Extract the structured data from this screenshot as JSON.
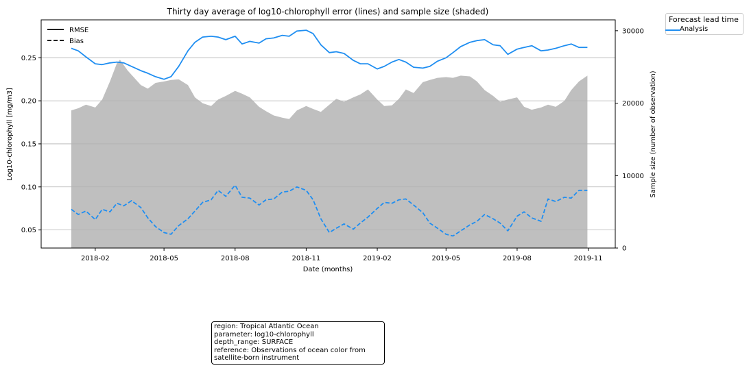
{
  "chart_data": {
    "type": "line",
    "title": "Thirty day average of log10-chlorophyll error (lines) and sample size (shaded)",
    "xlabel": "Date (months)",
    "ylabel": "Log10-chlorophyll [mg/m3]",
    "ylabel_right": "Sample size (number of observation)",
    "x_ticks": [
      "2018-02",
      "2018-05",
      "2018-08",
      "2018-11",
      "2019-02",
      "2019-05",
      "2019-08",
      "2019-11"
    ],
    "y_ticks": [
      "0.05",
      "0.10",
      "0.15",
      "0.20",
      "0.25"
    ],
    "y_right_ticks": [
      "0",
      "10000",
      "20000",
      "30000"
    ],
    "ylim": [
      0.029,
      0.294
    ],
    "ylim_right": [
      0,
      31500
    ],
    "xlim": [
      "2017-11-23",
      "2019-12-06"
    ],
    "grid": "horizontal",
    "legend_styles": {
      "entries": [
        {
          "label": "RMSE",
          "style": "solid"
        },
        {
          "label": "Bias",
          "style": "dashed"
        }
      ],
      "placement": "top-left"
    },
    "legend_forecast": {
      "title": "Forecast lead time",
      "entries": [
        {
          "label": "Analysis"
        }
      ],
      "placement": "outside top-right"
    },
    "series": [
      {
        "name": "RMSE",
        "color": "#1f8ef1",
        "style": "solid",
        "x": [
          "2018-01-01",
          "2018-01-10",
          "2018-01-20",
          "2018-02-01",
          "2018-02-10",
          "2018-02-20",
          "2018-03-01",
          "2018-03-10",
          "2018-03-20",
          "2018-04-01",
          "2018-04-10",
          "2018-04-20",
          "2018-05-01",
          "2018-05-10",
          "2018-05-20",
          "2018-06-01",
          "2018-06-10",
          "2018-06-20",
          "2018-07-01",
          "2018-07-10",
          "2018-07-20",
          "2018-08-01",
          "2018-08-10",
          "2018-08-20",
          "2018-09-01",
          "2018-09-10",
          "2018-09-20",
          "2018-10-01",
          "2018-10-10",
          "2018-10-20",
          "2018-11-01",
          "2018-11-10",
          "2018-11-20",
          "2018-12-01",
          "2018-12-10",
          "2018-12-20",
          "2019-01-01",
          "2019-01-10",
          "2019-01-20",
          "2019-02-01",
          "2019-02-10",
          "2019-02-20",
          "2019-03-01",
          "2019-03-10",
          "2019-03-20",
          "2019-04-01",
          "2019-04-10",
          "2019-04-20",
          "2019-05-01",
          "2019-05-10",
          "2019-05-20",
          "2019-06-01",
          "2019-06-10",
          "2019-06-20",
          "2019-07-01",
          "2019-07-10",
          "2019-07-20",
          "2019-08-01",
          "2019-08-10",
          "2019-08-20",
          "2019-09-01",
          "2019-09-10",
          "2019-09-20",
          "2019-10-01",
          "2019-10-10",
          "2019-10-20",
          "2019-10-31"
        ],
        "values": [
          0.261,
          0.258,
          0.251,
          0.243,
          0.242,
          0.244,
          0.245,
          0.244,
          0.24,
          0.235,
          0.232,
          0.228,
          0.225,
          0.228,
          0.24,
          0.258,
          0.268,
          0.274,
          0.275,
          0.274,
          0.271,
          0.275,
          0.266,
          0.269,
          0.267,
          0.272,
          0.273,
          0.276,
          0.275,
          0.281,
          0.282,
          0.278,
          0.265,
          0.256,
          0.257,
          0.255,
          0.247,
          0.243,
          0.243,
          0.237,
          0.24,
          0.245,
          0.248,
          0.245,
          0.239,
          0.238,
          0.24,
          0.246,
          0.25,
          0.256,
          0.263,
          0.268,
          0.27,
          0.271,
          0.265,
          0.264,
          0.254,
          0.26,
          0.262,
          0.264,
          0.258,
          0.259,
          0.261,
          0.264,
          0.266,
          0.262,
          0.262
        ]
      },
      {
        "name": "Bias",
        "color": "#1f8ef1",
        "style": "dashed",
        "x": [
          "2018-01-01",
          "2018-01-10",
          "2018-01-20",
          "2018-02-01",
          "2018-02-10",
          "2018-02-20",
          "2018-03-01",
          "2018-03-10",
          "2018-03-20",
          "2018-04-01",
          "2018-04-10",
          "2018-04-20",
          "2018-05-01",
          "2018-05-10",
          "2018-05-20",
          "2018-06-01",
          "2018-06-10",
          "2018-06-20",
          "2018-07-01",
          "2018-07-10",
          "2018-07-20",
          "2018-08-01",
          "2018-08-10",
          "2018-08-20",
          "2018-09-01",
          "2018-09-10",
          "2018-09-20",
          "2018-10-01",
          "2018-10-10",
          "2018-10-20",
          "2018-11-01",
          "2018-11-10",
          "2018-11-20",
          "2018-12-01",
          "2018-12-10",
          "2018-12-20",
          "2019-01-01",
          "2019-01-10",
          "2019-01-20",
          "2019-02-01",
          "2019-02-10",
          "2019-02-20",
          "2019-03-01",
          "2019-03-10",
          "2019-03-20",
          "2019-04-01",
          "2019-04-10",
          "2019-04-20",
          "2019-05-01",
          "2019-05-10",
          "2019-05-20",
          "2019-06-01",
          "2019-06-10",
          "2019-06-20",
          "2019-07-01",
          "2019-07-10",
          "2019-07-20",
          "2019-08-01",
          "2019-08-10",
          "2019-08-20",
          "2019-09-01",
          "2019-09-10",
          "2019-09-20",
          "2019-10-01",
          "2019-10-10",
          "2019-10-20",
          "2019-10-31"
        ],
        "values": [
          0.074,
          0.068,
          0.072,
          0.062,
          0.074,
          0.071,
          0.081,
          0.078,
          0.084,
          0.076,
          0.064,
          0.054,
          0.047,
          0.045,
          0.055,
          0.063,
          0.072,
          0.082,
          0.085,
          0.096,
          0.089,
          0.102,
          0.088,
          0.087,
          0.079,
          0.085,
          0.086,
          0.094,
          0.095,
          0.1,
          0.096,
          0.085,
          0.063,
          0.047,
          0.052,
          0.057,
          0.051,
          0.058,
          0.065,
          0.075,
          0.082,
          0.081,
          0.085,
          0.086,
          0.079,
          0.07,
          0.058,
          0.052,
          0.045,
          0.043,
          0.049,
          0.056,
          0.06,
          0.068,
          0.063,
          0.058,
          0.049,
          0.066,
          0.071,
          0.064,
          0.06,
          0.086,
          0.083,
          0.088,
          0.087,
          0.096,
          0.096
        ]
      },
      {
        "name": "Sample size",
        "color": "#bfbfbf",
        "style": "area",
        "axis": "right",
        "x": [
          "2018-01-01",
          "2018-01-10",
          "2018-01-20",
          "2018-02-01",
          "2018-02-10",
          "2018-02-20",
          "2018-03-01",
          "2018-03-05",
          "2018-03-15",
          "2018-04-01",
          "2018-04-10",
          "2018-04-20",
          "2018-05-01",
          "2018-05-10",
          "2018-05-20",
          "2018-06-01",
          "2018-06-10",
          "2018-06-20",
          "2018-07-01",
          "2018-07-10",
          "2018-07-20",
          "2018-08-01",
          "2018-08-10",
          "2018-08-20",
          "2018-09-01",
          "2018-09-10",
          "2018-09-20",
          "2018-10-01",
          "2018-10-10",
          "2018-10-20",
          "2018-11-01",
          "2018-11-10",
          "2018-11-20",
          "2018-12-01",
          "2018-12-10",
          "2018-12-20",
          "2019-01-01",
          "2019-01-10",
          "2019-01-20",
          "2019-02-01",
          "2019-02-10",
          "2019-02-20",
          "2019-03-01",
          "2019-03-10",
          "2019-03-20",
          "2019-04-01",
          "2019-04-10",
          "2019-04-20",
          "2019-05-01",
          "2019-05-10",
          "2019-05-20",
          "2019-06-01",
          "2019-06-10",
          "2019-06-20",
          "2019-07-01",
          "2019-07-10",
          "2019-07-20",
          "2019-08-01",
          "2019-08-10",
          "2019-08-20",
          "2019-09-01",
          "2019-09-10",
          "2019-09-20",
          "2019-10-01",
          "2019-10-10",
          "2019-10-20",
          "2019-10-31"
        ],
        "values": [
          19000,
          19300,
          19800,
          19400,
          20500,
          23000,
          25500,
          26000,
          24500,
          22500,
          22000,
          22800,
          23000,
          23200,
          23300,
          22500,
          20800,
          20000,
          19600,
          20500,
          21000,
          21700,
          21300,
          20800,
          19500,
          18900,
          18300,
          18000,
          17800,
          19000,
          19600,
          19200,
          18800,
          19800,
          20600,
          20200,
          20800,
          21200,
          21900,
          20500,
          19600,
          19700,
          20600,
          21900,
          21400,
          22900,
          23200,
          23500,
          23600,
          23500,
          23800,
          23700,
          23000,
          21800,
          21000,
          20200,
          20500,
          20800,
          19500,
          19100,
          19400,
          19800,
          19500,
          20300,
          21800,
          23000,
          23800
        ]
      }
    ]
  },
  "info_box": {
    "lines": [
      "region: Tropical Atlantic Ocean",
      "parameter: log10-chlorophyll",
      "depth_range: SURFACE",
      "reference: Observations of ocean color from",
      "satellite-born instrument"
    ]
  }
}
